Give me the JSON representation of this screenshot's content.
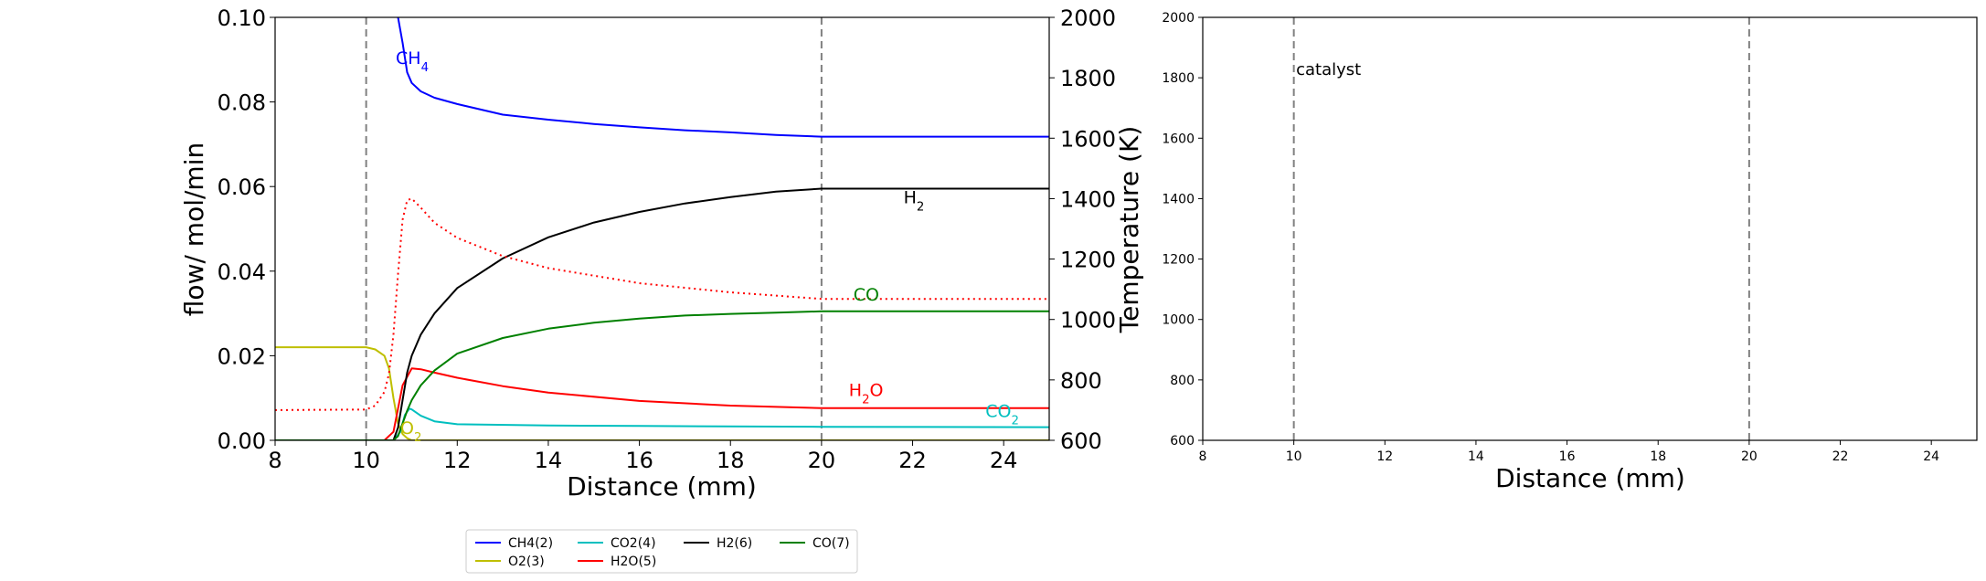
{
  "chart_data": [
    {
      "type": "line",
      "xlabel": "Distance (mm)",
      "ylabel": "flow/ mol/min",
      "y2label": "Temperature (K)",
      "xlim": [
        8,
        25
      ],
      "ylim": [
        0,
        0.1
      ],
      "y2lim": [
        600,
        2000
      ],
      "xticks": [
        "8",
        "10",
        "12",
        "14",
        "16",
        "18",
        "20",
        "22",
        "24"
      ],
      "yticks": [
        "0.00",
        "0.02",
        "0.04",
        "0.06",
        "0.08",
        "0.10"
      ],
      "y2ticks": [
        "600",
        "800",
        "1000",
        "1200",
        "1400",
        "1600",
        "1800",
        "2000"
      ],
      "grid": false,
      "vlines": [
        10,
        20
      ],
      "colors": {
        "CH4(2)": "#0000ff",
        "O2(3)": "#bfbf00",
        "CO2(4)": "#00bfbf",
        "H2O(5)": "#ff0000",
        "H2(6)": "#000000",
        "CO(7)": "#008000",
        "temperature": "#ff0000"
      },
      "series": [
        {
          "name": "CH4(2)",
          "x": [
            10.7,
            10.8,
            10.9,
            11.0,
            11.2,
            11.5,
            12,
            13,
            14,
            15,
            16,
            17,
            18,
            19,
            20,
            25
          ],
          "y": [
            0.1,
            0.094,
            0.087,
            0.0845,
            0.0825,
            0.081,
            0.0795,
            0.077,
            0.0758,
            0.0748,
            0.074,
            0.0733,
            0.0728,
            0.0722,
            0.0718,
            0.0718
          ]
        },
        {
          "name": "O2(3)",
          "x": [
            8,
            10,
            10.2,
            10.4,
            10.5,
            10.6,
            10.7,
            10.8,
            10.9,
            11.0,
            12,
            25
          ],
          "y": [
            0.022,
            0.022,
            0.0215,
            0.02,
            0.017,
            0.01,
            0.004,
            0.0015,
            0.0005,
            0.0,
            0.0,
            0.0
          ]
        },
        {
          "name": "CO2(4)",
          "x": [
            8,
            10.6,
            10.75,
            10.85,
            10.95,
            11.0,
            11.2,
            11.5,
            12,
            14,
            16,
            20,
            25
          ],
          "y": [
            0,
            0,
            0.002,
            0.006,
            0.0075,
            0.0073,
            0.0058,
            0.0045,
            0.0038,
            0.0035,
            0.0034,
            0.0032,
            0.0031
          ]
        },
        {
          "name": "H2O(5)",
          "x": [
            8,
            10.4,
            10.6,
            10.8,
            11.0,
            11.2,
            11.5,
            12,
            13,
            14,
            16,
            18,
            20,
            25
          ],
          "y": [
            0,
            0,
            0.002,
            0.013,
            0.017,
            0.0168,
            0.016,
            0.0148,
            0.0128,
            0.0113,
            0.0093,
            0.0082,
            0.0076,
            0.0076
          ]
        },
        {
          "name": "H2(6)",
          "x": [
            8,
            10.6,
            10.7,
            10.8,
            10.9,
            11.0,
            11.2,
            11.5,
            12,
            13,
            14,
            15,
            16,
            17,
            18,
            19,
            20,
            25
          ],
          "y": [
            0,
            0,
            0.003,
            0.0095,
            0.016,
            0.02,
            0.025,
            0.03,
            0.036,
            0.043,
            0.048,
            0.0515,
            0.054,
            0.056,
            0.0575,
            0.0588,
            0.0595,
            0.0595
          ]
        },
        {
          "name": "CO(7)",
          "x": [
            8,
            10.6,
            10.7,
            10.8,
            10.9,
            11.0,
            11.2,
            11.5,
            12,
            13,
            14,
            15,
            16,
            17,
            18,
            19,
            20,
            25
          ],
          "y": [
            0,
            0,
            0.001,
            0.004,
            0.007,
            0.0095,
            0.013,
            0.0165,
            0.0205,
            0.0242,
            0.0264,
            0.0278,
            0.0288,
            0.0295,
            0.0299,
            0.0302,
            0.0305,
            0.0305
          ]
        },
        {
          "name": "temperature",
          "axis": "y2",
          "dotted": true,
          "x": [
            8,
            10,
            10.2,
            10.4,
            10.5,
            10.6,
            10.7,
            10.8,
            10.9,
            11.0,
            11.2,
            11.5,
            12,
            13,
            14,
            16,
            18,
            20,
            25
          ],
          "y": [
            700,
            702,
            715,
            760,
            820,
            950,
            1150,
            1330,
            1395,
            1400,
            1370,
            1320,
            1270,
            1210,
            1170,
            1120,
            1090,
            1068,
            1068
          ]
        }
      ],
      "annotations": [
        {
          "text": "CH",
          "sub": "4",
          "x": 10.65,
          "y": 0.089,
          "color": "#0000ff"
        },
        {
          "text": "H",
          "sub": "2",
          "x": 21.8,
          "y": 0.056,
          "color": "#000000"
        },
        {
          "text": "CO",
          "sub": "",
          "x": 20.7,
          "y": 0.033,
          "color": "#008000"
        },
        {
          "text": "H",
          "sub": "2",
          "tail": "O",
          "x": 20.6,
          "y": 0.0105,
          "color": "#ff0000"
        },
        {
          "text": "CO",
          "sub": "2",
          "x": 23.6,
          "y": 0.0055,
          "color": "#00bfbf"
        },
        {
          "text": "O",
          "sub": "2",
          "x": 10.75,
          "y": 0.0015,
          "color": "#bfbf00"
        }
      ]
    },
    {
      "type": "line",
      "xlabel": "Distance (mm)",
      "ylabel": "",
      "xlim": [
        8,
        25
      ],
      "ylim": [
        600,
        2000
      ],
      "xticks": [
        "8",
        "10",
        "12",
        "14",
        "16",
        "18",
        "20",
        "22",
        "24"
      ],
      "yticks": [
        "600",
        "800",
        "1000",
        "1200",
        "1400",
        "1600",
        "1800",
        "2000"
      ],
      "grid": false,
      "vlines": [
        10,
        20
      ],
      "annotations": [
        {
          "text": "catalyst",
          "x": 10.05,
          "y": 1810,
          "color": "#000000"
        }
      ],
      "series": []
    }
  ],
  "legend": {
    "placement": "bottom-center",
    "entries": [
      {
        "label": "CH4(2)",
        "color": "#0000ff"
      },
      {
        "label": "CO2(4)",
        "color": "#00bfbf"
      },
      {
        "label": "H2(6)",
        "color": "#000000"
      },
      {
        "label": "CO(7)",
        "color": "#008000"
      },
      {
        "label": "O2(3)",
        "color": "#bfbf00"
      },
      {
        "label": "H2O(5)",
        "color": "#ff0000"
      }
    ]
  }
}
